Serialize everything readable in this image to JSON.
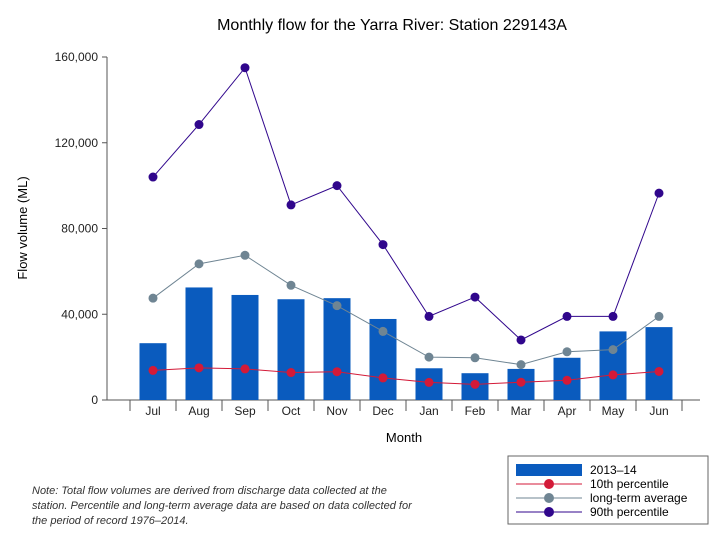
{
  "chart_data": {
    "type": "bar",
    "title": "Monthly flow for the Yarra River: Station 229143A",
    "xlabel": "Month",
    "ylabel": "Flow volume (ML)",
    "ylim": [
      0,
      160000
    ],
    "yticks": [
      0,
      40000,
      80000,
      120000,
      160000
    ],
    "ytick_labels": [
      "0",
      "40,000",
      "80,000",
      "120,000",
      "160,000"
    ],
    "categories": [
      "Jul",
      "Aug",
      "Sep",
      "Oct",
      "Nov",
      "Dec",
      "Jan",
      "Feb",
      "Mar",
      "Apr",
      "May",
      "Jun"
    ],
    "series": [
      {
        "name": "2013–14",
        "kind": "bar",
        "color": "#0a5bbe",
        "values": [
          26500,
          52500,
          49000,
          47000,
          47500,
          37800,
          14800,
          12500,
          14500,
          19700,
          32000,
          34000
        ]
      },
      {
        "name": "10th percentile",
        "kind": "line",
        "color": "#d31a38",
        "values": [
          13800,
          15000,
          14500,
          12800,
          13200,
          10300,
          8200,
          7300,
          8300,
          9200,
          11700,
          13300
        ]
      },
      {
        "name": "long-term average",
        "kind": "line",
        "color": "#6f8593",
        "values": [
          47500,
          63500,
          67500,
          53500,
          44000,
          32000,
          20000,
          19700,
          16500,
          22500,
          23500,
          39000
        ]
      },
      {
        "name": "90th percentile",
        "kind": "line",
        "color": "#30068c",
        "values": [
          104000,
          128500,
          155000,
          91000,
          100000,
          72500,
          39000,
          48000,
          28000,
          39000,
          39000,
          96500
        ]
      }
    ],
    "legend_position": "bottom-right",
    "note": "Note: Total flow volumes are derived from discharge data collected at the station. Percentile and long-term average data are based on data collected for the period of record 1976–2014."
  }
}
